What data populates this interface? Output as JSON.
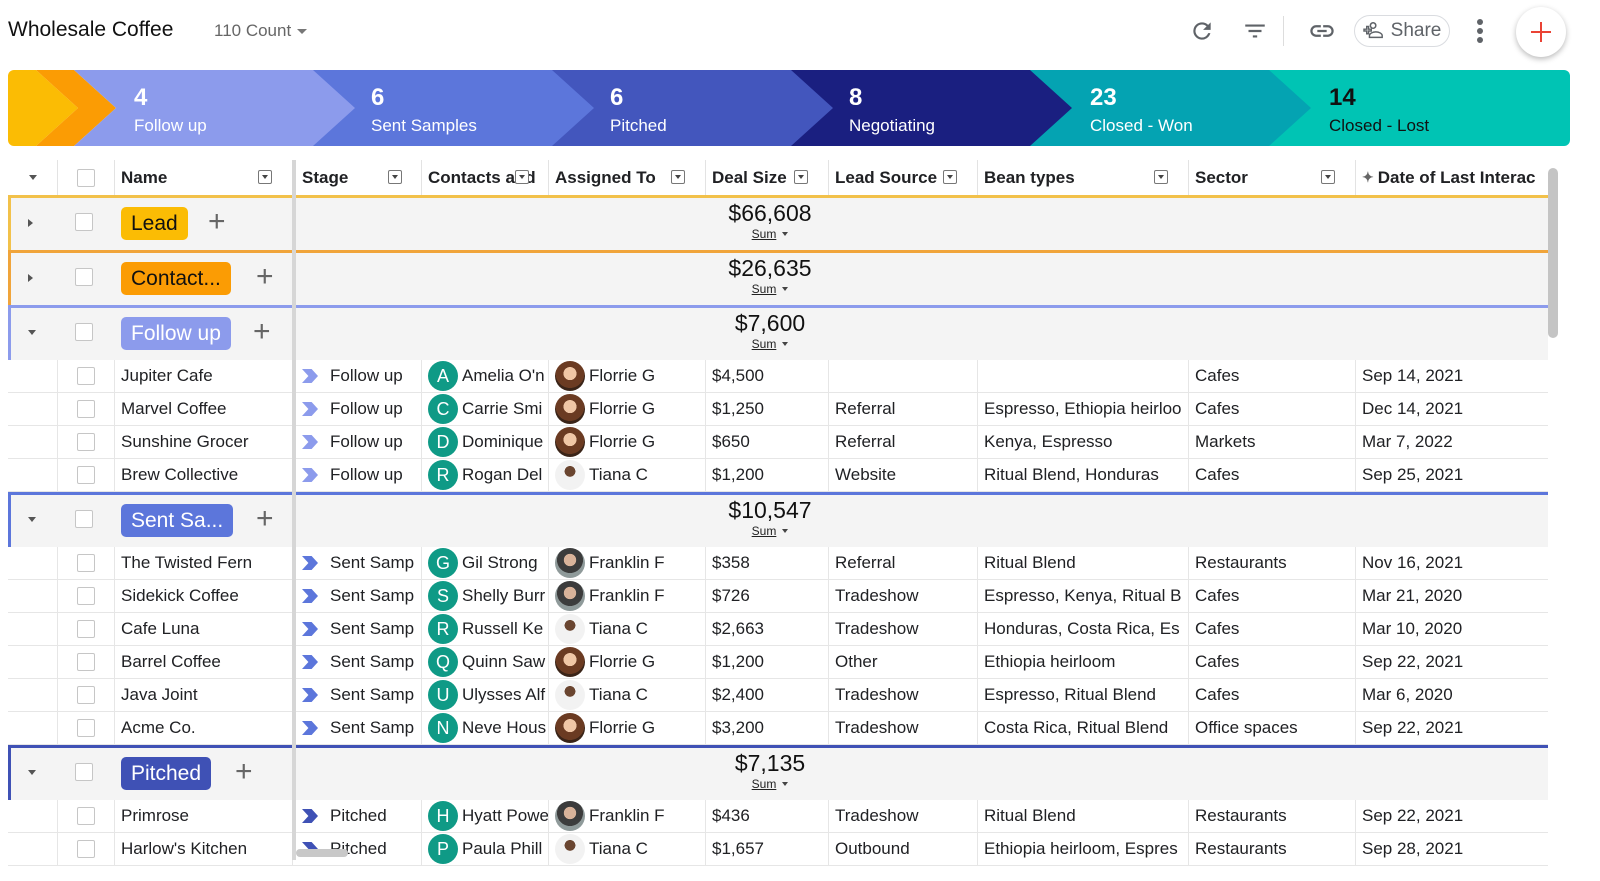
{
  "header": {
    "title": "Wholesale Coffee",
    "count_label": "110 Count",
    "share_label": "Share"
  },
  "toolbar_icons": [
    "refresh-icon",
    "filter-icon",
    "link-icon",
    "share-person-icon",
    "more-vert-icon",
    "add-icon"
  ],
  "colors": {
    "lead": "#fbbc04",
    "contacted": "#fb9c04",
    "follow_up": "#8c9bec",
    "sent_samples": "#5c76db",
    "pitched": "#3f51b5",
    "negotiating": "#1a1f80",
    "closed_won": "#04a3b2",
    "closed_lost": "#00c4b4",
    "contact_avatar": "#0f9a86",
    "fab_plus": "#ea4335"
  },
  "pipeline": [
    {
      "count": "4",
      "label": "Follow up"
    },
    {
      "count": "6",
      "label": "Sent Samples"
    },
    {
      "count": "6",
      "label": "Pitched"
    },
    {
      "count": "8",
      "label": "Negotiating"
    },
    {
      "count": "23",
      "label": "Closed - Won"
    },
    {
      "count": "14",
      "label": "Closed - Lost"
    }
  ],
  "columns": [
    "Name",
    "Stage",
    "Contacts and",
    "Assigned To",
    "Deal Size",
    "Lead Source",
    "Bean types",
    "Sector",
    "Date of Last Interac"
  ],
  "groups": [
    {
      "tag": "Lead",
      "sum": "$66,608",
      "agg": "Sum",
      "rows": []
    },
    {
      "tag": "Contact...",
      "sum": "$26,635",
      "agg": "Sum",
      "rows": []
    },
    {
      "tag": "Follow up",
      "sum": "$7,600",
      "agg": "Sum",
      "rows": [
        {
          "name": "Jupiter Cafe",
          "stage": "Follow up",
          "contact_initial": "A",
          "contact": "Amelia O'n",
          "assigned": "Florrie G",
          "deal": "$4,500",
          "source": "",
          "beans": "",
          "sector": "Cafes",
          "date": "Sep 14, 2021"
        },
        {
          "name": "Marvel Coffee",
          "stage": "Follow up",
          "contact_initial": "C",
          "contact": "Carrie Smi",
          "assigned": "Florrie G",
          "deal": "$1,250",
          "source": "Referral",
          "beans": "Espresso, Ethiopia heirloo",
          "sector": "Cafes",
          "date": "Dec 14, 2021"
        },
        {
          "name": "Sunshine Grocer",
          "stage": "Follow up",
          "contact_initial": "D",
          "contact": "Dominique",
          "assigned": "Florrie G",
          "deal": "$650",
          "source": "Referral",
          "beans": "Kenya, Espresso",
          "sector": "Markets",
          "date": "Mar 7, 2022"
        },
        {
          "name": "Brew Collective",
          "stage": "Follow up",
          "contact_initial": "R",
          "contact": "Rogan Del",
          "assigned": "Tiana C",
          "deal": "$1,200",
          "source": "Website",
          "beans": "Ritual Blend, Honduras",
          "sector": "Cafes",
          "date": "Sep 25, 2021"
        }
      ]
    },
    {
      "tag": "Sent Sa...",
      "sum": "$10,547",
      "agg": "Sum",
      "rows": [
        {
          "name": "The Twisted Fern",
          "stage": "Sent Samp",
          "contact_initial": "G",
          "contact": "Gil Strong",
          "assigned": "Franklin F",
          "deal": "$358",
          "source": "Referral",
          "beans": "Ritual Blend",
          "sector": "Restaurants",
          "date": "Nov 16, 2021"
        },
        {
          "name": "Sidekick Coffee",
          "stage": "Sent Samp",
          "contact_initial": "S",
          "contact": "Shelly Burr",
          "assigned": "Franklin F",
          "deal": "$726",
          "source": "Tradeshow",
          "beans": "Espresso, Kenya, Ritual B",
          "sector": "Cafes",
          "date": "Mar 21, 2020"
        },
        {
          "name": "Cafe Luna",
          "stage": "Sent Samp",
          "contact_initial": "R",
          "contact": "Russell Ke",
          "assigned": "Tiana C",
          "deal": "$2,663",
          "source": "Tradeshow",
          "beans": "Honduras, Costa Rica, Es",
          "sector": "Cafes",
          "date": "Mar 10, 2020"
        },
        {
          "name": "Barrel Coffee",
          "stage": "Sent Samp",
          "contact_initial": "Q",
          "contact": "Quinn Saw",
          "assigned": "Florrie G",
          "deal": "$1,200",
          "source": "Other",
          "beans": "Ethiopia heirloom",
          "sector": "Cafes",
          "date": "Sep 22, 2021"
        },
        {
          "name": "Java Joint",
          "stage": "Sent Samp",
          "contact_initial": "U",
          "contact": "Ulysses Alf",
          "assigned": "Tiana C",
          "deal": "$2,400",
          "source": "Tradeshow",
          "beans": "Espresso, Ritual Blend",
          "sector": "Cafes",
          "date": "Mar 6, 2020"
        },
        {
          "name": "Acme Co.",
          "stage": "Sent Samp",
          "contact_initial": "N",
          "contact": "Neve Hous",
          "assigned": "Florrie G",
          "deal": "$3,200",
          "source": "Tradeshow",
          "beans": "Costa Rica, Ritual Blend",
          "sector": "Office spaces",
          "date": "Sep 22, 2021"
        }
      ]
    },
    {
      "tag": "Pitched",
      "sum": "$7,135",
      "agg": "Sum",
      "rows": [
        {
          "name": "Primrose",
          "stage": "Pitched",
          "contact_initial": "H",
          "contact": "Hyatt Powe",
          "assigned": "Franklin F",
          "deal": "$436",
          "source": "Tradeshow",
          "beans": "Ritual Blend",
          "sector": "Restaurants",
          "date": "Sep 22, 2021"
        },
        {
          "name": "Harlow's Kitchen",
          "stage": "Pitched",
          "contact_initial": "P",
          "contact": "Paula Phill",
          "assigned": "Tiana C",
          "deal": "$1,657",
          "source": "Outbound",
          "beans": "Ethiopia heirloom, Espres",
          "sector": "Restaurants",
          "date": "Sep 28, 2021"
        }
      ]
    }
  ]
}
